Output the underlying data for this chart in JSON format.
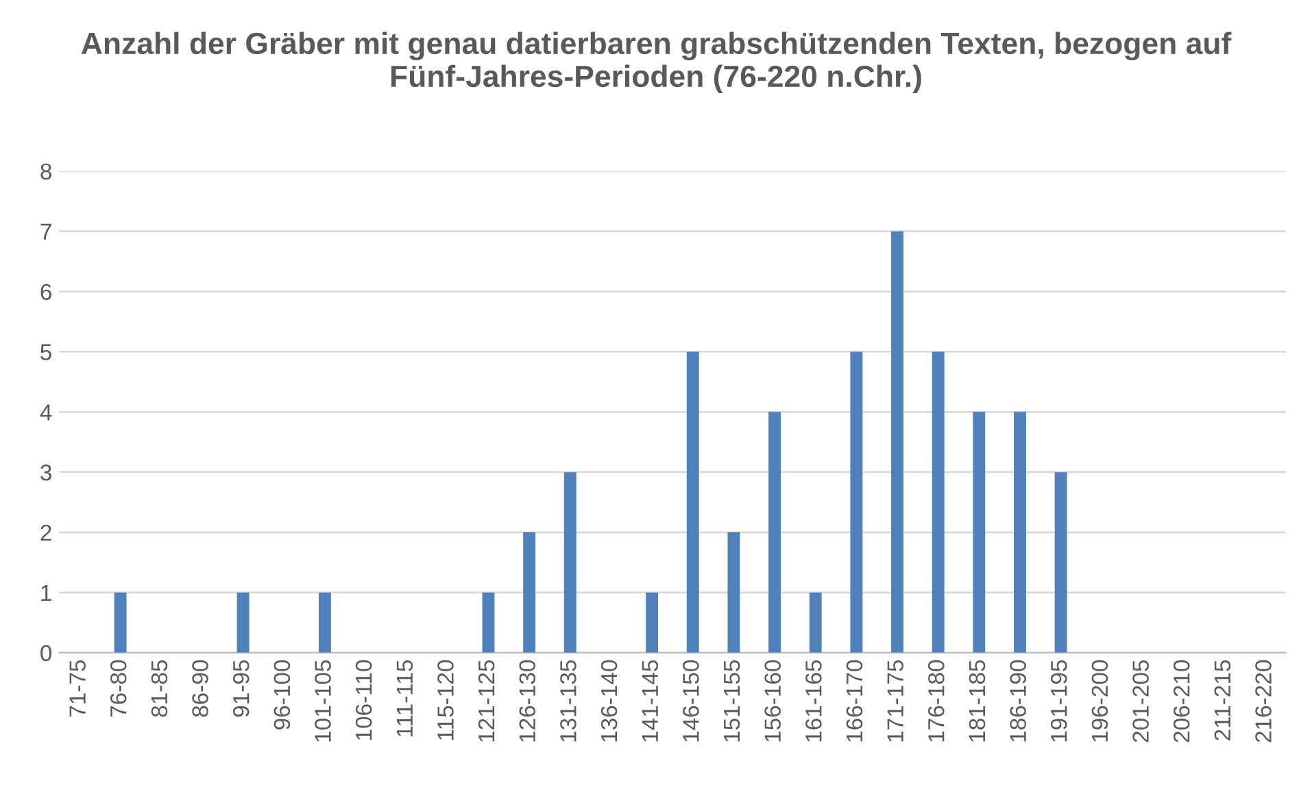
{
  "chart_data": {
    "type": "bar",
    "title": "Anzahl der Gräber mit genau datierbaren grabschützenden Texten, bezogen auf Fünf-Jahres-Perioden (76-220 n.Chr.)",
    "categories": [
      "71-75",
      "76-80",
      "81-85",
      "86-90",
      "91-95",
      "96-100",
      "101-105",
      "106-110",
      "111-115",
      "115-120",
      "121-125",
      "126-130",
      "131-135",
      "136-140",
      "141-145",
      "146-150",
      "151-155",
      "156-160",
      "161-165",
      "166-170",
      "171-175",
      "176-180",
      "181-185",
      "186-190",
      "191-195",
      "196-200",
      "201-205",
      "206-210",
      "211-215",
      "216-220"
    ],
    "values": [
      0,
      1,
      0,
      0,
      1,
      0,
      1,
      0,
      0,
      0,
      1,
      2,
      3,
      0,
      1,
      5,
      2,
      4,
      1,
      5,
      7,
      5,
      4,
      4,
      3,
      0,
      0,
      0,
      0,
      0
    ],
    "color": "#4f81bd",
    "ylim": [
      0,
      8
    ],
    "yticks": [
      0,
      1,
      2,
      3,
      4,
      5,
      6,
      7,
      8
    ],
    "grid": "y"
  }
}
